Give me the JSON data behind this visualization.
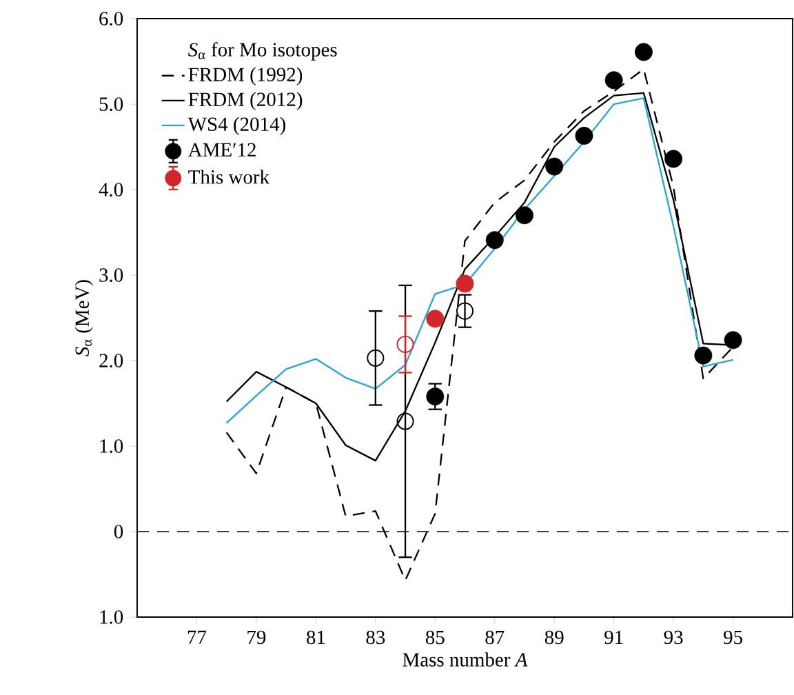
{
  "chart_data": {
    "type": "line",
    "xlabel": "Mass number *A*",
    "ylabel": "*S*$_{α}$ (MeV)",
    "legend_title": "*S*$_{α}$ for Mo isotopes",
    "xlim": [
      75,
      97
    ],
    "ylim": [
      -1,
      6
    ],
    "xticks": [
      77,
      79,
      81,
      83,
      85,
      87,
      89,
      91,
      93,
      95
    ],
    "yticks": [
      {
        "value": -1,
        "label": "1.0"
      },
      0,
      {
        "value": 1,
        "label": "1.0"
      },
      {
        "value": 2,
        "label": "2.0"
      },
      {
        "value": 3,
        "label": "3.0"
      },
      {
        "value": 4,
        "label": "4.0"
      },
      {
        "value": 5,
        "label": "5.0"
      },
      {
        "value": 6,
        "label": "6.0"
      }
    ],
    "legend": "top left",
    "grid": false,
    "ref_lines": [
      {
        "axis": "y",
        "value": 0,
        "line_style": "dashed",
        "color": "#000000"
      }
    ],
    "series": [
      {
        "name": "FRDM (1992)",
        "line_style": "dashed",
        "marker": "none",
        "color": "#000000",
        "x": [
          78,
          79,
          80,
          81,
          82,
          83,
          84,
          85,
          86,
          87,
          88,
          89,
          90,
          91,
          92,
          93,
          94,
          95
        ],
        "values": [
          1.16,
          0.68,
          1.69,
          1.5,
          0.18,
          0.24,
          -0.57,
          0.21,
          3.4,
          3.85,
          4.11,
          4.56,
          4.92,
          5.15,
          5.41,
          4.03,
          1.79,
          2.16
        ]
      },
      {
        "name": "FRDM (2012)",
        "line_style": "solid",
        "marker": "none",
        "color": "#000000",
        "x": [
          78,
          79,
          80,
          81,
          82,
          83,
          84,
          85,
          86,
          87,
          88,
          89,
          90,
          91,
          92,
          93,
          94,
          95
        ],
        "values": [
          1.52,
          1.87,
          1.69,
          1.5,
          1.01,
          0.83,
          1.41,
          2.21,
          3.07,
          3.45,
          3.85,
          4.5,
          4.84,
          5.1,
          5.13,
          3.88,
          2.2,
          2.18
        ]
      },
      {
        "name": "WS4 (2014)",
        "line_style": "solid",
        "marker": "none",
        "color": "#29a3dc",
        "x": [
          78,
          79,
          80,
          81,
          82,
          83,
          84,
          85,
          86,
          87,
          88,
          89,
          90,
          91,
          92,
          93,
          94,
          95
        ],
        "values": [
          1.27,
          1.59,
          1.9,
          2.02,
          1.8,
          1.67,
          1.95,
          2.78,
          2.89,
          3.31,
          3.77,
          4.16,
          4.56,
          5.0,
          5.07,
          3.57,
          1.93,
          2.01
        ]
      },
      {
        "name": "AME′12",
        "type": "scatter",
        "marker": "circle",
        "color": "#000000",
        "x": [
          85,
          87,
          88,
          89,
          90,
          91,
          92,
          93,
          94,
          95
        ],
        "values": [
          1.58,
          3.41,
          3.7,
          4.27,
          4.63,
          5.28,
          5.61,
          4.36,
          2.06,
          2.24
        ],
        "errors": [
          0.15,
          null,
          null,
          null,
          null,
          null,
          null,
          null,
          null,
          null
        ]
      },
      {
        "type": "scatter",
        "marker": "open circle",
        "color": "#000000",
        "x": [
          83,
          84,
          86
        ],
        "values": [
          2.03,
          1.29,
          2.58
        ],
        "errors": [
          0.55,
          1.59,
          0.19
        ]
      },
      {
        "name": "This work",
        "type": "scatter",
        "marker": "circle",
        "color": "#d3262b",
        "x": [
          85,
          86
        ],
        "values": [
          2.49,
          2.9
        ],
        "errors": [
          null,
          null
        ]
      },
      {
        "type": "scatter",
        "marker": "open circle",
        "color": "#d3262b",
        "x": [
          84
        ],
        "values": [
          2.19
        ],
        "errors": [
          0.33
        ]
      }
    ]
  }
}
